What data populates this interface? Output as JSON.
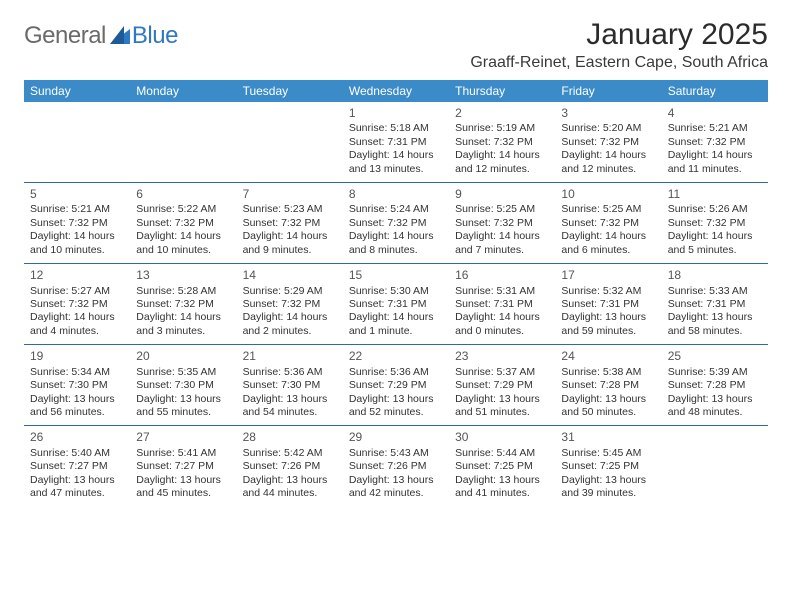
{
  "brand": {
    "part1": "General",
    "part2": "Blue",
    "icon_color": "#2f78c2",
    "text_gray": "#6a6a6a"
  },
  "title": "January 2025",
  "location": "Graaff-Reinet, Eastern Cape, South Africa",
  "colors": {
    "header_bg": "#3b8bc9",
    "header_text": "#ffffff",
    "divider": "#2e6ba3",
    "body_text": "#333333",
    "daynum": "#555555",
    "background": "#ffffff"
  },
  "weekdays": [
    "Sunday",
    "Monday",
    "Tuesday",
    "Wednesday",
    "Thursday",
    "Friday",
    "Saturday"
  ],
  "weeks": [
    [
      null,
      null,
      null,
      {
        "n": "1",
        "sr": "5:18 AM",
        "ss": "7:31 PM",
        "dl": "14 hours and 13 minutes."
      },
      {
        "n": "2",
        "sr": "5:19 AM",
        "ss": "7:32 PM",
        "dl": "14 hours and 12 minutes."
      },
      {
        "n": "3",
        "sr": "5:20 AM",
        "ss": "7:32 PM",
        "dl": "14 hours and 12 minutes."
      },
      {
        "n": "4",
        "sr": "5:21 AM",
        "ss": "7:32 PM",
        "dl": "14 hours and 11 minutes."
      }
    ],
    [
      {
        "n": "5",
        "sr": "5:21 AM",
        "ss": "7:32 PM",
        "dl": "14 hours and 10 minutes."
      },
      {
        "n": "6",
        "sr": "5:22 AM",
        "ss": "7:32 PM",
        "dl": "14 hours and 10 minutes."
      },
      {
        "n": "7",
        "sr": "5:23 AM",
        "ss": "7:32 PM",
        "dl": "14 hours and 9 minutes."
      },
      {
        "n": "8",
        "sr": "5:24 AM",
        "ss": "7:32 PM",
        "dl": "14 hours and 8 minutes."
      },
      {
        "n": "9",
        "sr": "5:25 AM",
        "ss": "7:32 PM",
        "dl": "14 hours and 7 minutes."
      },
      {
        "n": "10",
        "sr": "5:25 AM",
        "ss": "7:32 PM",
        "dl": "14 hours and 6 minutes."
      },
      {
        "n": "11",
        "sr": "5:26 AM",
        "ss": "7:32 PM",
        "dl": "14 hours and 5 minutes."
      }
    ],
    [
      {
        "n": "12",
        "sr": "5:27 AM",
        "ss": "7:32 PM",
        "dl": "14 hours and 4 minutes."
      },
      {
        "n": "13",
        "sr": "5:28 AM",
        "ss": "7:32 PM",
        "dl": "14 hours and 3 minutes."
      },
      {
        "n": "14",
        "sr": "5:29 AM",
        "ss": "7:32 PM",
        "dl": "14 hours and 2 minutes."
      },
      {
        "n": "15",
        "sr": "5:30 AM",
        "ss": "7:31 PM",
        "dl": "14 hours and 1 minute."
      },
      {
        "n": "16",
        "sr": "5:31 AM",
        "ss": "7:31 PM",
        "dl": "14 hours and 0 minutes."
      },
      {
        "n": "17",
        "sr": "5:32 AM",
        "ss": "7:31 PM",
        "dl": "13 hours and 59 minutes."
      },
      {
        "n": "18",
        "sr": "5:33 AM",
        "ss": "7:31 PM",
        "dl": "13 hours and 58 minutes."
      }
    ],
    [
      {
        "n": "19",
        "sr": "5:34 AM",
        "ss": "7:30 PM",
        "dl": "13 hours and 56 minutes."
      },
      {
        "n": "20",
        "sr": "5:35 AM",
        "ss": "7:30 PM",
        "dl": "13 hours and 55 minutes."
      },
      {
        "n": "21",
        "sr": "5:36 AM",
        "ss": "7:30 PM",
        "dl": "13 hours and 54 minutes."
      },
      {
        "n": "22",
        "sr": "5:36 AM",
        "ss": "7:29 PM",
        "dl": "13 hours and 52 minutes."
      },
      {
        "n": "23",
        "sr": "5:37 AM",
        "ss": "7:29 PM",
        "dl": "13 hours and 51 minutes."
      },
      {
        "n": "24",
        "sr": "5:38 AM",
        "ss": "7:28 PM",
        "dl": "13 hours and 50 minutes."
      },
      {
        "n": "25",
        "sr": "5:39 AM",
        "ss": "7:28 PM",
        "dl": "13 hours and 48 minutes."
      }
    ],
    [
      {
        "n": "26",
        "sr": "5:40 AM",
        "ss": "7:27 PM",
        "dl": "13 hours and 47 minutes."
      },
      {
        "n": "27",
        "sr": "5:41 AM",
        "ss": "7:27 PM",
        "dl": "13 hours and 45 minutes."
      },
      {
        "n": "28",
        "sr": "5:42 AM",
        "ss": "7:26 PM",
        "dl": "13 hours and 44 minutes."
      },
      {
        "n": "29",
        "sr": "5:43 AM",
        "ss": "7:26 PM",
        "dl": "13 hours and 42 minutes."
      },
      {
        "n": "30",
        "sr": "5:44 AM",
        "ss": "7:25 PM",
        "dl": "13 hours and 41 minutes."
      },
      {
        "n": "31",
        "sr": "5:45 AM",
        "ss": "7:25 PM",
        "dl": "13 hours and 39 minutes."
      },
      null
    ]
  ],
  "labels": {
    "sunrise": "Sunrise: ",
    "sunset": "Sunset: ",
    "daylight": "Daylight: "
  }
}
